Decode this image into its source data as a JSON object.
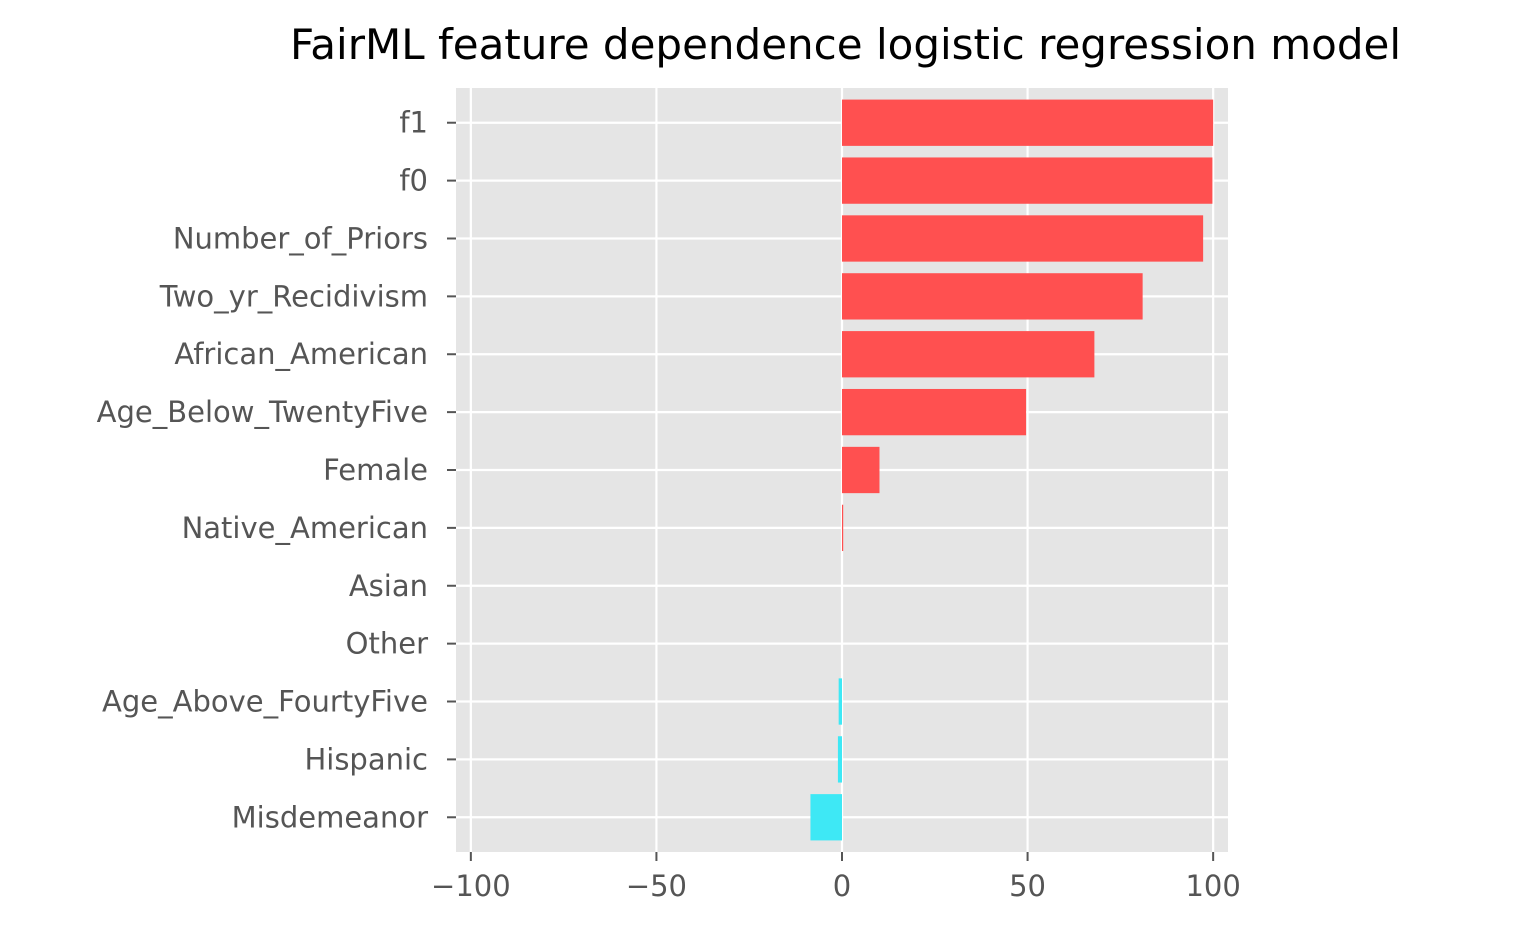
{
  "chart_data": {
    "type": "bar",
    "orientation": "horizontal",
    "title": "FairML feature dependence logistic regression model",
    "xlabel": "",
    "ylabel": "",
    "xlim": [
      -104,
      104
    ],
    "xticks": [
      -100,
      -50,
      0,
      50,
      100
    ],
    "xtick_labels": [
      "−100",
      "−50",
      "0",
      "50",
      "100"
    ],
    "grid": true,
    "style": "ggplot",
    "categories": [
      "f1",
      "f0",
      "Number_of_Priors",
      "Two_yr_Recidivism",
      "African_American",
      "Age_Below_TwentyFive",
      "Female",
      "Native_American",
      "Asian",
      "Other",
      "Age_Above_FourtyFive",
      "Hispanic",
      "Misdemeanor"
    ],
    "values": [
      100,
      99.8,
      97.3,
      81,
      68,
      49.6,
      10.1,
      0.3,
      0,
      0,
      -0.9,
      -1.1,
      -8.5
    ],
    "colors": {
      "positive": "#ff5050",
      "negative": "#3ee8f5",
      "background": "#e5e5e5",
      "grid": "#ffffff",
      "tick_text": "#555555"
    }
  }
}
